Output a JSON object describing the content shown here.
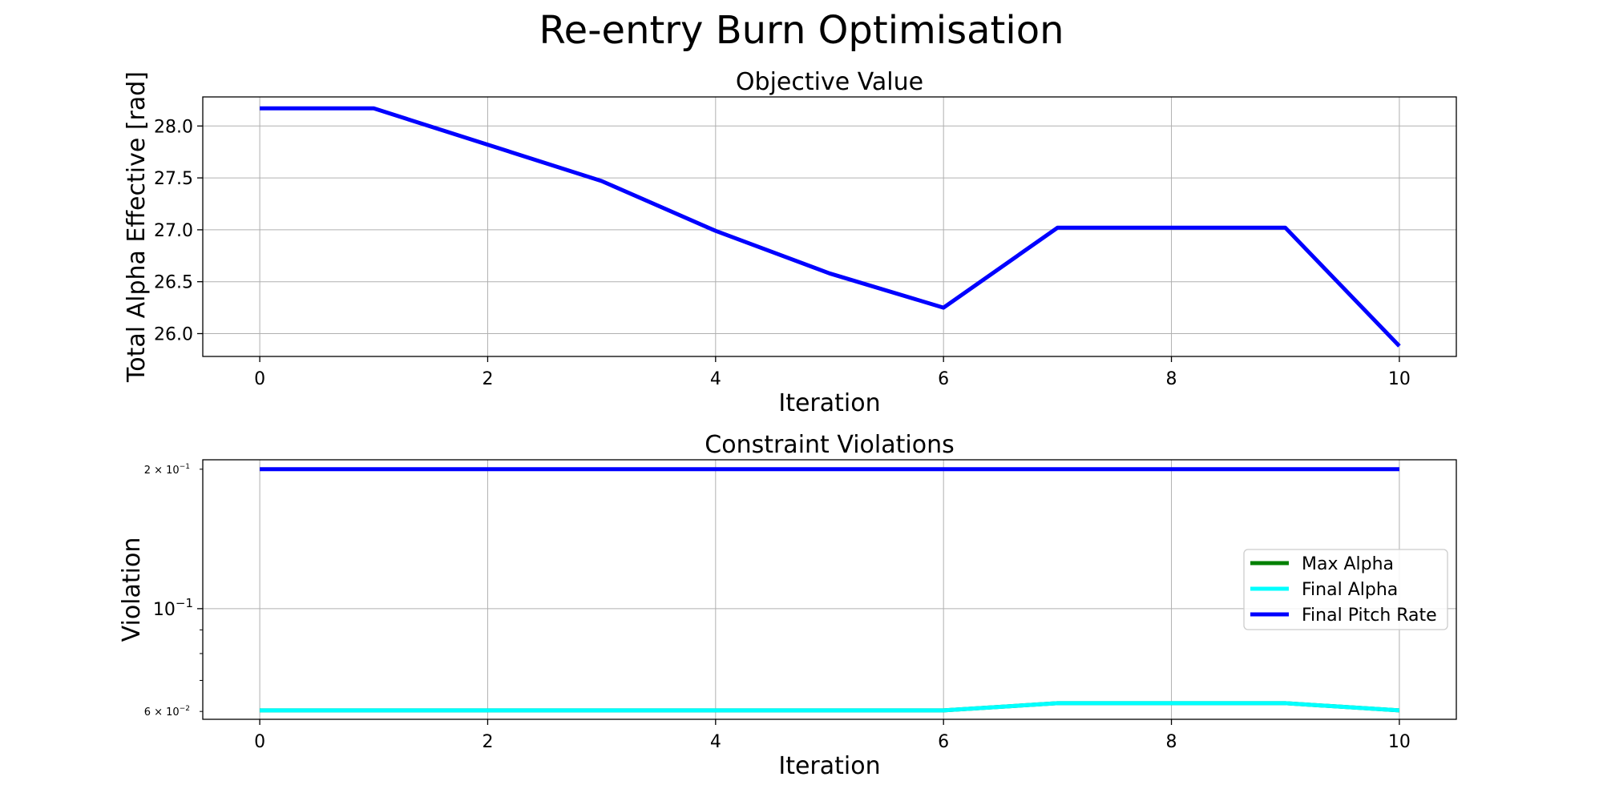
{
  "figure": {
    "title": "Re-entry Burn Optimisation"
  },
  "chart_data": [
    {
      "type": "line",
      "title": "Objective Value",
      "xlabel": "Iteration",
      "ylabel": "Total Alpha Effective [rad]",
      "x": [
        0,
        1,
        2,
        3,
        4,
        5,
        6,
        7,
        8,
        9,
        10
      ],
      "xlim": [
        -0.5,
        10.5
      ],
      "ylim": [
        25.78,
        28.28
      ],
      "xticks": [
        0,
        2,
        4,
        6,
        8,
        10
      ],
      "xtick_labels": [
        "0",
        "2",
        "4",
        "6",
        "8",
        "10"
      ],
      "yticks": [
        26.0,
        26.5,
        27.0,
        27.5,
        28.0
      ],
      "ytick_labels": [
        "26.0",
        "26.5",
        "27.0",
        "27.5",
        "28.0"
      ],
      "grid": true,
      "series": [
        {
          "color": "#0000ff",
          "values": [
            28.17,
            28.17,
            27.82,
            27.47,
            26.99,
            26.58,
            26.25,
            27.02,
            27.02,
            27.02,
            25.88
          ]
        }
      ]
    },
    {
      "type": "line",
      "title": "Constraint Violations",
      "xlabel": "Iteration",
      "ylabel": "Violation",
      "y_scale": "log",
      "x": [
        0,
        1,
        2,
        3,
        4,
        5,
        6,
        7,
        8,
        9,
        10
      ],
      "xlim": [
        -0.5,
        10.5
      ],
      "ylim": [
        0.0577,
        0.2096
      ],
      "xticks": [
        0,
        2,
        4,
        6,
        8,
        10
      ],
      "xtick_labels": [
        "0",
        "2",
        "4",
        "6",
        "8",
        "10"
      ],
      "yticks_major": [
        0.1
      ],
      "yticks_major_labels": [
        "10"
      ],
      "yticks_major_exponent": "−1",
      "yticks_minor": [
        0.06,
        0.07,
        0.08,
        0.09,
        0.2
      ],
      "yticks_minor_labels": {
        "0.06": "6 × 10",
        "0.2": "2 × 10"
      },
      "yticks_minor_exponent": "−2|−1",
      "grid": true,
      "legend": "center-right",
      "series": [
        {
          "name": "Max Alpha",
          "color": "#008000",
          "values": [
            0.0603,
            0.0603,
            0.0603,
            0.0603,
            0.0603,
            0.0603,
            0.0603,
            0.0625,
            0.0625,
            0.0625,
            0.0603
          ]
        },
        {
          "name": "Final Alpha",
          "color": "#00ffff",
          "values": [
            0.0603,
            0.0603,
            0.0603,
            0.0603,
            0.0603,
            0.0603,
            0.0603,
            0.0625,
            0.0625,
            0.0625,
            0.0603
          ]
        },
        {
          "name": "Final Pitch Rate",
          "color": "#0000ff",
          "values": [
            0.2,
            0.2,
            0.2,
            0.2,
            0.2,
            0.2,
            0.2,
            0.2,
            0.2,
            0.2,
            0.2
          ]
        }
      ]
    }
  ]
}
